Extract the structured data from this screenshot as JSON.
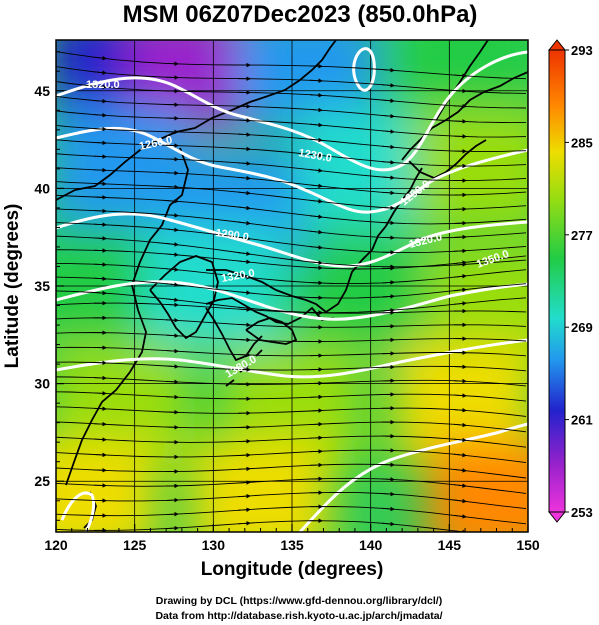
{
  "chart_data": {
    "type": "heatmap",
    "title": "MSM 06Z07Dec2023 (850.0hPa)",
    "xlabel": "Longitude (degrees)",
    "ylabel": "Latitude  (degrees)",
    "xlim": [
      120,
      150
    ],
    "ylim": [
      22.4,
      47.6
    ],
    "x_ticks": [
      "120",
      "125",
      "130",
      "135",
      "140",
      "145",
      "150"
    ],
    "y_ticks": [
      "25",
      "30",
      "35",
      "40",
      "45"
    ],
    "grid": true,
    "colorbar": {
      "min": 253,
      "max": 293,
      "ticks": [
        "293",
        "285",
        "277",
        "269",
        "261",
        "253"
      ],
      "colors": [
        "#ee33dd",
        "#9a22cc",
        "#2222cc",
        "#2299ee",
        "#22ddcc",
        "#22cc44",
        "#99dd11",
        "#eedd00",
        "#ff8800",
        "#ee3300"
      ]
    },
    "temperature_samples": [
      {
        "lon": 124,
        "lat": 46,
        "value": 262
      },
      {
        "lon": 129,
        "lat": 46,
        "value": 256
      },
      {
        "lon": 136,
        "lat": 46,
        "value": 265
      },
      {
        "lon": 146,
        "lat": 46,
        "value": 273
      },
      {
        "lon": 124,
        "lat": 41,
        "value": 266
      },
      {
        "lon": 132,
        "lat": 39,
        "value": 266
      },
      {
        "lon": 140,
        "lat": 41,
        "value": 270
      },
      {
        "lon": 147,
        "lat": 41,
        "value": 278
      },
      {
        "lon": 122,
        "lat": 35,
        "value": 277
      },
      {
        "lon": 130,
        "lat": 35,
        "value": 272
      },
      {
        "lon": 140,
        "lat": 34,
        "value": 277
      },
      {
        "lon": 148,
        "lat": 34,
        "value": 281
      },
      {
        "lon": 124,
        "lat": 29,
        "value": 279
      },
      {
        "lon": 135,
        "lat": 29,
        "value": 281
      },
      {
        "lon": 146,
        "lat": 29,
        "value": 283
      },
      {
        "lon": 122,
        "lat": 24,
        "value": 283
      },
      {
        "lon": 133,
        "lat": 24,
        "value": 285
      },
      {
        "lon": 148,
        "lat": 24,
        "value": 289
      }
    ],
    "contour_labels": [
      "1320.0",
      "1260.0",
      "1230.0",
      "1290.0",
      "1320.0",
      "1290.0",
      "1320.0",
      "1350.0",
      "1380.0"
    ],
    "streamline_direction": "westerly to west-northwesterly flow"
  },
  "credits": {
    "line1": "Drawing by DCL (https://www.gfd-dennou.org/library/dcl/)",
    "line2": "Data from http://database.rish.kyoto-u.ac.jp/arch/jmadata/"
  }
}
